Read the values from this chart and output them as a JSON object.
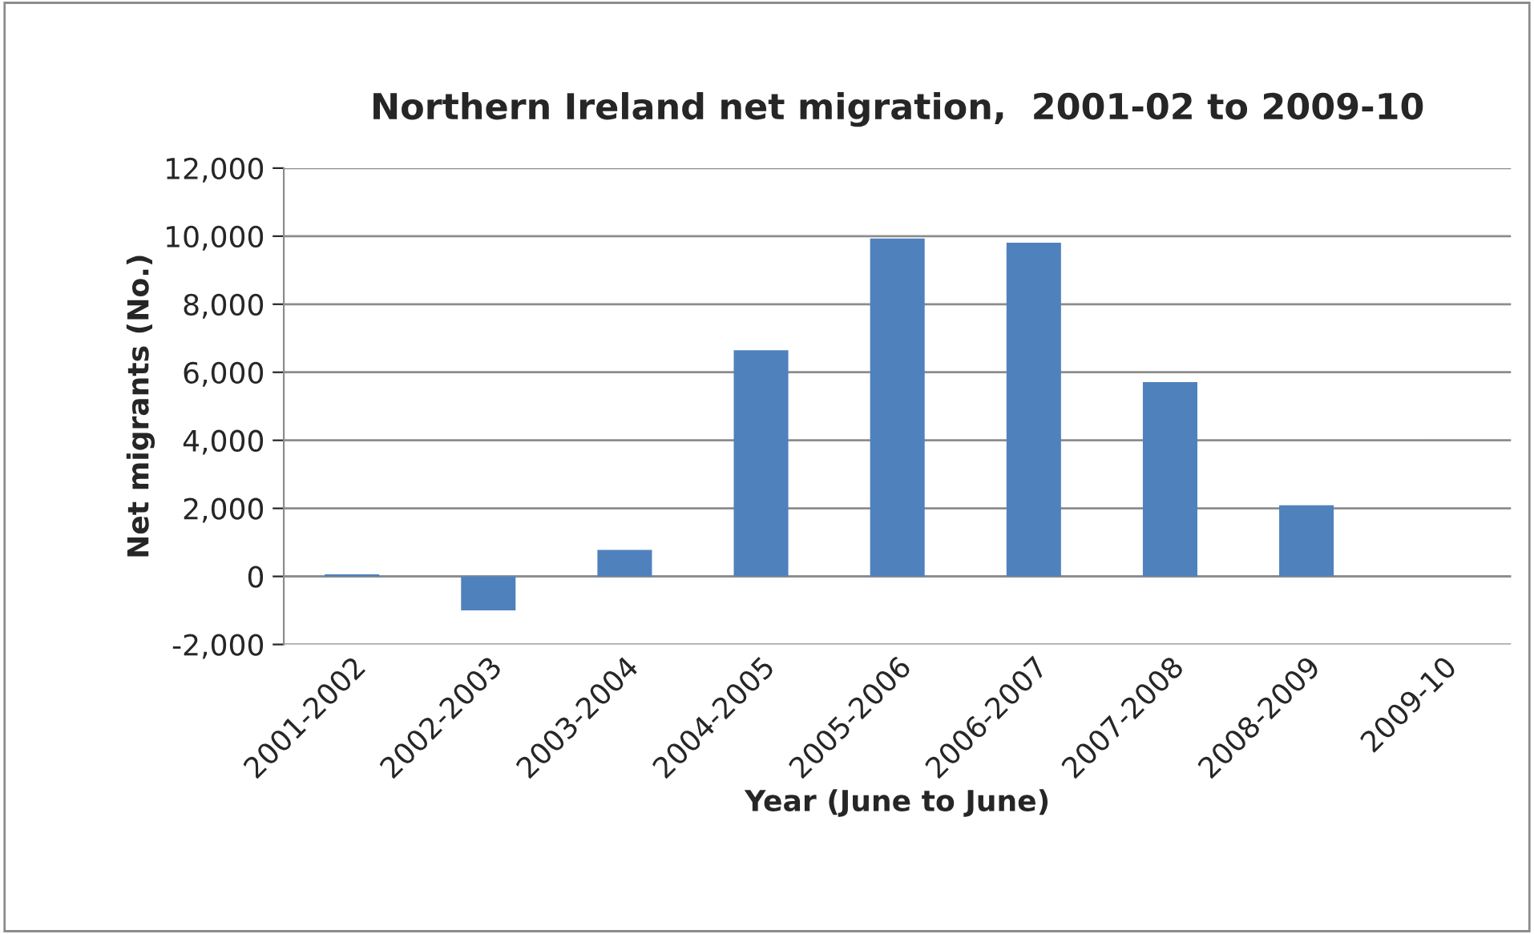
{
  "chart_data": {
    "type": "bar",
    "title": "Northern Ireland net migration,  2001-02 to 2009-10",
    "xlabel": "Year (June to June)",
    "ylabel": "Net migrants (No.)",
    "categories": [
      "2001-2002",
      "2002-2003",
      "2003-2004",
      "2004-2005",
      "2005-2006",
      "2006-2007",
      "2007-2008",
      "2008-2009",
      "2009-10"
    ],
    "values": [
      60,
      -1000,
      780,
      6650,
      9930,
      9810,
      5710,
      2090,
      null
    ],
    "color": "#4f81bd",
    "ylim": [
      -2000,
      12000
    ],
    "yticks": [
      {
        "value": -2000,
        "label": "-2,000"
      },
      {
        "value": 0,
        "label": "0"
      },
      {
        "value": 2000,
        "label": "2,000"
      },
      {
        "value": 4000,
        "label": "4,000"
      },
      {
        "value": 6000,
        "label": "6,000"
      },
      {
        "value": 8000,
        "label": "8,000"
      },
      {
        "value": 10000,
        "label": "10,000"
      },
      {
        "value": 12000,
        "label": "12,000"
      }
    ],
    "grid": "y",
    "legend": false
  }
}
